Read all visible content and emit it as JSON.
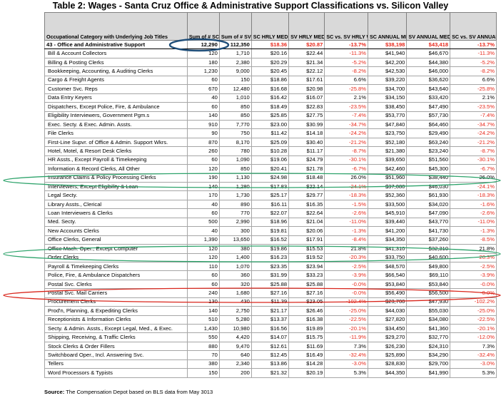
{
  "title": "Table 2: Wages - Santa Cruz Office & Administrative Support Classifications vs. Silicon Valley",
  "headers": [
    "Occupational Category with Underlying Job Titles",
    "Sum of # SC EE's",
    "Sum of # SV EE's",
    "SC HRLY MEDIAN",
    "SV HRLY MEDIAN",
    "SC vs. SV HRLY WAGE (+/- %)",
    "SC ANNUAL MEDIAN",
    "SV ANNUAL MEDIAN",
    "SC vs. SV ANNUAL WAGE (+/- %)"
  ],
  "rows": [
    [
      "43 - Office and Administrative Support",
      "12,290",
      "112,350",
      "$18.36",
      "$20.87",
      "-13.7%",
      "$38,198",
      "$43,418",
      "-13.7%"
    ],
    [
      "Bill & Account Collectors",
      "120",
      "1,710",
      "$20.16",
      "$22.44",
      "-11.3%",
      "$41,940",
      "$46,670",
      "-11.3%"
    ],
    [
      "Billing & Posting Clerks",
      "180",
      "2,380",
      "$20.29",
      "$21.34",
      "-5.2%",
      "$42,200",
      "$44,380",
      "-5.2%"
    ],
    [
      "Bookkeeping, Accounting, & Auditing Clerks",
      "1,230",
      "9,000",
      "$20.45",
      "$22.12",
      "-8.2%",
      "$42,530",
      "$46,000",
      "-8.2%"
    ],
    [
      "Cargo & Freight Agents",
      "60",
      "150",
      "$18.86",
      "$17.61",
      "6.6%",
      "$39,220",
      "$36,620",
      "6.6%"
    ],
    [
      "Customer Svc. Reps",
      "670",
      "12,480",
      "$16.68",
      "$20.98",
      "-25.8%",
      "$34,700",
      "$43,640",
      "-25.8%"
    ],
    [
      "Data Entry Keyers",
      "40",
      "1,010",
      "$16.42",
      "$16.07",
      "2.1%",
      "$34,150",
      "$33,420",
      "2.1%"
    ],
    [
      "Dispatchers, Except Police, Fire, & Ambulance",
      "60",
      "850",
      "$18.49",
      "$22.83",
      "-23.5%",
      "$38,450",
      "$47,490",
      "-23.5%"
    ],
    [
      "Eligibility Interviewers, Government Pgm.s",
      "140",
      "850",
      "$25.85",
      "$27.75",
      "-7.4%",
      "$53,770",
      "$57,730",
      "-7.4%"
    ],
    [
      "Exec. Secty. & Exec. Admin. Assts.",
      "910",
      "7,770",
      "$23.00",
      "$30.99",
      "-34.7%",
      "$47,840",
      "$64,460",
      "-34.7%"
    ],
    [
      "File Clerks",
      "90",
      "750",
      "$11.42",
      "$14.18",
      "-24.2%",
      "$23,750",
      "$29,490",
      "-24.2%"
    ],
    [
      "First-Line Supvr. of Office & Admin. Support Wkrs.",
      "870",
      "8,170",
      "$25.09",
      "$30.40",
      "-21.2%",
      "$52,180",
      "$63,240",
      "-21.2%"
    ],
    [
      "Hotel, Motel, & Resort Desk Clerks",
      "260",
      "780",
      "$10.28",
      "$11.17",
      "-8.7%",
      "$21,380",
      "$23,240",
      "-8.7%"
    ],
    [
      "HR Assts., Except Payroll & Timekeeping",
      "60",
      "1,090",
      "$19.06",
      "$24.79",
      "-30.1%",
      "$39,650",
      "$51,560",
      "-30.1%"
    ],
    [
      "Information & Record Clerks, All Other",
      "120",
      "850",
      "$20.41",
      "$21.78",
      "-6.7%",
      "$42,460",
      "$45,300",
      "-6.7%"
    ],
    [
      "Insurance Claims & Policy Processing Clerks",
      "190",
      "1,130",
      "$24.98",
      "$18.48",
      "26.0%",
      "$51,960",
      "$38,440",
      "26.0%"
    ],
    [
      "Interviewers, Except Eligibility & Loan",
      "140",
      "1,280",
      "$17.83",
      "$22.14",
      "-24.1%",
      "$37,080",
      "$46,030",
      "-24.1%"
    ],
    [
      "Legal Secty.",
      "170",
      "1,730",
      "$25.17",
      "$29.77",
      "-18.3%",
      "$52,360",
      "$61,930",
      "-18.3%"
    ],
    [
      "Library Assts., Clerical",
      "40",
      "890",
      "$16.11",
      "$16.35",
      "-1.5%",
      "$33,500",
      "$34,020",
      "-1.6%"
    ],
    [
      "Loan Interviewers & Clerks",
      "60",
      "770",
      "$22.07",
      "$22.64",
      "-2.6%",
      "$45,910",
      "$47,090",
      "-2.6%"
    ],
    [
      "Med. Secty.",
      "500",
      "2,990",
      "$18.96",
      "$21.04",
      "-11.0%",
      "$39,440",
      "$43,770",
      "-11.0%"
    ],
    [
      "New Accounts Clerks",
      "40",
      "300",
      "$19.81",
      "$20.06",
      "-1.3%",
      "$41,200",
      "$41,730",
      "-1.3%"
    ],
    [
      "Office Clerks, General",
      "1,390",
      "13,650",
      "$16.52",
      "$17.91",
      "-8.4%",
      "$34,350",
      "$37,260",
      "-8.5%"
    ],
    [
      "Office Mach. Oper., Except Computer",
      "120",
      "380",
      "$19.86",
      "$15.53",
      "21.8%",
      "$41,310",
      "$32,310",
      "21.8%"
    ],
    [
      "Order Clerks",
      "120",
      "1,400",
      "$16.23",
      "$19.52",
      "-20.3%",
      "$33,750",
      "$40,600",
      "-20.3%"
    ],
    [
      "Payroll & Timekeeping Clerks",
      "110",
      "1,070",
      "$23.35",
      "$23.94",
      "-2.5%",
      "$48,570",
      "$49,800",
      "-2.5%"
    ],
    [
      "Police, Fire, & Ambulance Dispatchers",
      "60",
      "360",
      "$31.99",
      "$33.23",
      "-3.9%",
      "$66,540",
      "$69,110",
      "-3.9%"
    ],
    [
      "Postal Svc. Clerks",
      "60",
      "320",
      "$25.88",
      "$25.88",
      "-0.0%",
      "$53,840",
      "$53,840",
      "-0.0%"
    ],
    [
      "Postal Svc. Mail Carriers",
      "240",
      "1,680",
      "$27.16",
      "$27.16",
      "-0.0%",
      "$56,490",
      "$56,500",
      "-0.0%"
    ],
    [
      "Procurement Clerks",
      "130",
      "430",
      "$11.39",
      "$23.05",
      "-102.4%",
      "$23,700",
      "$47,930",
      "-102.2%"
    ],
    [
      "Prod'n, Planning, & Expediting Clerks",
      "140",
      "2,750",
      "$21.17",
      "$26.46",
      "-25.0%",
      "$44,030",
      "$55,030",
      "-25.0%"
    ],
    [
      "Receptionists & Information Clerks",
      "510",
      "5,280",
      "$13.37",
      "$16.38",
      "-22.5%",
      "$27,820",
      "$34,080",
      "-22.5%"
    ],
    [
      "Secty. & Admin. Assts., Except Legal, Med., & Exec.",
      "1,430",
      "10,980",
      "$16.56",
      "$19.89",
      "-20.1%",
      "$34,450",
      "$41,360",
      "-20.1%"
    ],
    [
      "Shipping, Receiving, & Traffic Clerks",
      "550",
      "4,420",
      "$14.07",
      "$15.75",
      "-11.9%",
      "$29,270",
      "$32,770",
      "-12.0%"
    ],
    [
      "Stock Clerks & Order Fillers",
      "880",
      "9,470",
      "$12.61",
      "$11.69",
      "7.3%",
      "$26,230",
      "$24,310",
      "7.3%"
    ],
    [
      "Switchboard Oper., Incl. Answering Svc.",
      "70",
      "640",
      "$12.45",
      "$16.49",
      "-32.4%",
      "$25,890",
      "$34,290",
      "-32.4%"
    ],
    [
      "Tellers",
      "380",
      "2,340",
      "$13.86",
      "$14.28",
      "-3.0%",
      "$28,830",
      "$29,700",
      "-3.0%"
    ],
    [
      "Word Processors & Typists",
      "150",
      "200",
      "$21.32",
      "$20.19",
      "5.3%",
      "$44,350",
      "$41,990",
      "5.3%"
    ]
  ],
  "source_label": "Source:",
  "source_text": " The Compensation Depot based on BLS data from May 3013",
  "colors": {
    "negative": "#e8291c",
    "header_bg": "#d9d9d9",
    "circle_blue": "#1f4e79",
    "ellipse_green": "#2ea36b",
    "ellipse_red": "#d9261c"
  }
}
